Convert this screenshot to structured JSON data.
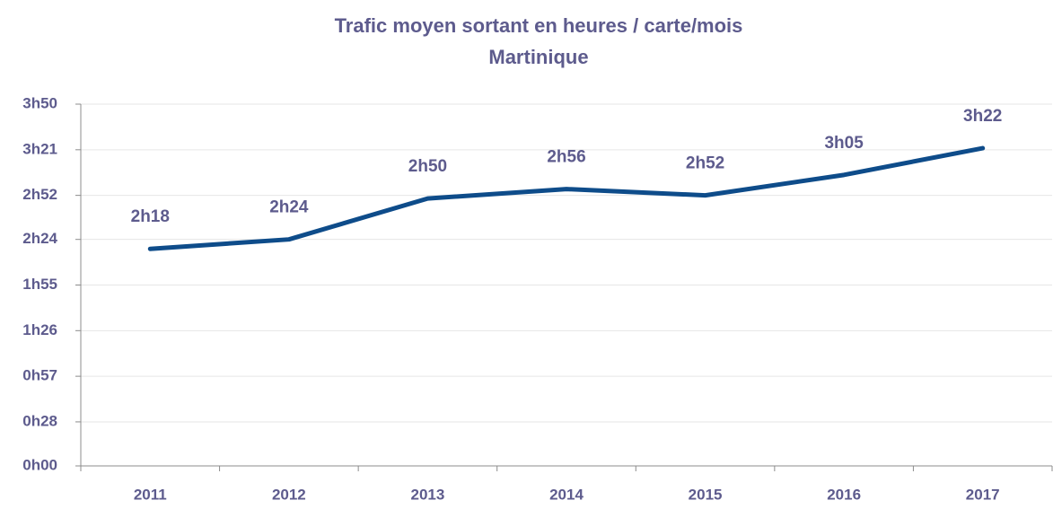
{
  "chart_data": {
    "type": "line",
    "title": "Trafic moyen sortant en heures / carte/mois",
    "subtitle": "Martinique",
    "categories": [
      "2011",
      "2012",
      "2013",
      "2014",
      "2015",
      "2016",
      "2017"
    ],
    "series": [
      {
        "name": "Martinique",
        "color": "#0e4c8a",
        "values": [
          138,
          144,
          170,
          176,
          172,
          185,
          202
        ],
        "value_labels": [
          "2h18",
          "2h24",
          "2h50",
          "2h56",
          "2h52",
          "3h05",
          "3h22"
        ]
      }
    ],
    "ylim": [
      0,
      230
    ],
    "yticks": [
      {
        "value": 0,
        "label": "0h00"
      },
      {
        "value": 28,
        "label": "0h28"
      },
      {
        "value": 57,
        "label": "0h57"
      },
      {
        "value": 86,
        "label": "1h26"
      },
      {
        "value": 115,
        "label": "1h55"
      },
      {
        "value": 144,
        "label": "2h24"
      },
      {
        "value": 172,
        "label": "2h52"
      },
      {
        "value": 201,
        "label": "3h21"
      },
      {
        "value": 230,
        "label": "3h50"
      }
    ],
    "grid": true
  }
}
